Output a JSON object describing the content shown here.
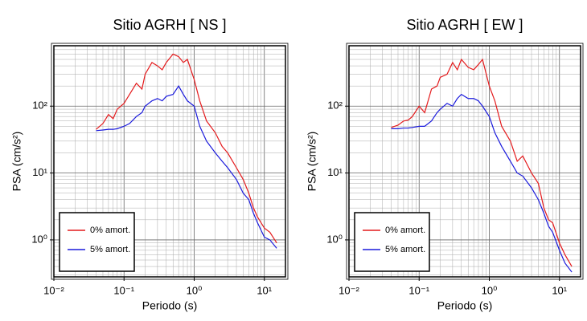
{
  "chart_data": [
    {
      "type": "line",
      "title": "Sitio AGRH [ NS ]",
      "x_label": "Periodo (s)",
      "y_label": "PSA (cm/s²)",
      "log_x": true,
      "log_y": true,
      "grid": true,
      "legend": "lower-left",
      "xlim": [
        0.01,
        20
      ],
      "ylim": [
        0.28,
        800
      ],
      "xticks": [
        {
          "value": 0.01,
          "label": "10⁻²"
        },
        {
          "value": 0.1,
          "label": "10⁻¹"
        },
        {
          "value": 1,
          "label": "10⁰"
        },
        {
          "value": 10,
          "label": "10¹"
        }
      ],
      "yticks": [
        {
          "value": 1,
          "label": "10⁰"
        },
        {
          "value": 10,
          "label": "10¹"
        },
        {
          "value": 100,
          "label": "10²"
        }
      ],
      "x": [
        0.04,
        0.05,
        0.06,
        0.07,
        0.08,
        0.1,
        0.12,
        0.15,
        0.18,
        0.2,
        0.25,
        0.3,
        0.35,
        0.4,
        0.5,
        0.6,
        0.7,
        0.8,
        1.0,
        1.2,
        1.5,
        2,
        2.5,
        3,
        4,
        5,
        6,
        7,
        8,
        10,
        12,
        15
      ],
      "series": [
        {
          "name": "0% amort.",
          "color": "#e41a1c",
          "values": [
            45,
            55,
            75,
            65,
            90,
            110,
            150,
            220,
            180,
            300,
            450,
            400,
            350,
            450,
            600,
            550,
            450,
            500,
            250,
            120,
            60,
            40,
            25,
            20,
            12,
            8,
            5,
            3,
            2.2,
            1.5,
            1.3,
            0.9
          ]
        },
        {
          "name": "5% amort.",
          "color": "#1a1adc",
          "values": [
            43,
            44,
            45,
            45,
            46,
            50,
            55,
            70,
            80,
            100,
            120,
            130,
            120,
            140,
            150,
            200,
            150,
            120,
            100,
            50,
            30,
            20,
            15,
            12,
            8,
            5,
            4,
            2.5,
            1.8,
            1.1,
            1.0,
            0.75
          ]
        }
      ]
    },
    {
      "type": "line",
      "title": "Sitio AGRH [ EW ]",
      "x_label": "Periodo (s)",
      "y_label": "PSA (cm/s²)",
      "log_x": true,
      "log_y": true,
      "grid": true,
      "legend": "lower-left",
      "xlim": [
        0.01,
        20
      ],
      "ylim": [
        0.28,
        800
      ],
      "xticks": [
        {
          "value": 0.01,
          "label": "10⁻²"
        },
        {
          "value": 0.1,
          "label": "10⁻¹"
        },
        {
          "value": 1,
          "label": "10⁰"
        },
        {
          "value": 10,
          "label": "10¹"
        }
      ],
      "yticks": [
        {
          "value": 1,
          "label": "10⁰"
        },
        {
          "value": 10,
          "label": "10¹"
        },
        {
          "value": 100,
          "label": "10²"
        }
      ],
      "x": [
        0.04,
        0.05,
        0.06,
        0.07,
        0.08,
        0.1,
        0.12,
        0.15,
        0.18,
        0.2,
        0.25,
        0.3,
        0.35,
        0.4,
        0.5,
        0.6,
        0.7,
        0.8,
        1.0,
        1.2,
        1.5,
        2,
        2.5,
        3,
        4,
        5,
        6,
        7,
        8,
        10,
        12,
        15
      ],
      "series": [
        {
          "name": "0% amort.",
          "color": "#e41a1c",
          "values": [
            48,
            52,
            60,
            62,
            70,
            100,
            80,
            180,
            200,
            270,
            300,
            450,
            350,
            500,
            380,
            350,
            420,
            500,
            200,
            120,
            50,
            30,
            15,
            18,
            10,
            7,
            3,
            2,
            1.8,
            0.9,
            0.6,
            0.4
          ]
        },
        {
          "name": "5% amort.",
          "color": "#1a1adc",
          "values": [
            46,
            46,
            47,
            47,
            48,
            50,
            50,
            60,
            80,
            90,
            110,
            100,
            130,
            150,
            130,
            130,
            120,
            100,
            70,
            40,
            25,
            15,
            10,
            9,
            6,
            4,
            2.5,
            1.6,
            1.3,
            0.7,
            0.45,
            0.33
          ]
        }
      ]
    }
  ]
}
